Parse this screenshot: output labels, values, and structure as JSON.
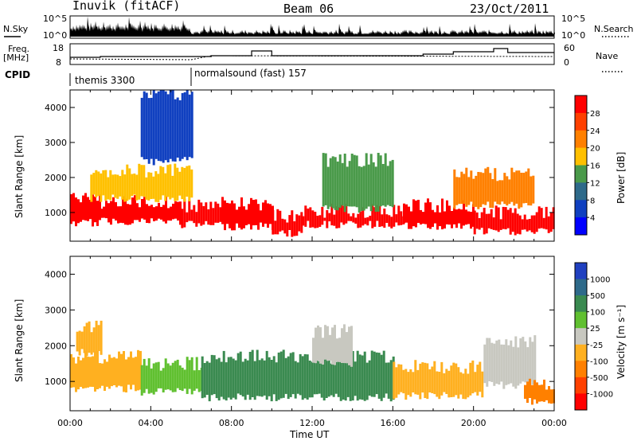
{
  "header": {
    "radar": "Inuvik (fitACF)",
    "beam": "Beam 06",
    "date": "23/Oct/2011"
  },
  "sky_panel": {
    "left_label": "N.Sky",
    "right_label": "N.Search",
    "left_ticks": [
      "10^5",
      "10^0"
    ],
    "right_ticks": [
      "10^5",
      "10^0"
    ]
  },
  "freq_panel": {
    "left_label_1": "Freq.",
    "left_label_2": "[MHz]",
    "left_ticks": [
      "18",
      "8"
    ],
    "right_label": "Nave",
    "right_ticks": [
      "60",
      "0"
    ]
  },
  "cpid": {
    "label": "CPID",
    "modes": [
      "themis 3300",
      "normalsound (fast) 157"
    ]
  },
  "range_panels": {
    "ylabel": "Slant Range [km]",
    "yticks": [
      "4000",
      "3000",
      "2000",
      "1000"
    ]
  },
  "time_axis": {
    "ticks": [
      "00:00",
      "04:00",
      "08:00",
      "12:00",
      "16:00",
      "20:00",
      "00:00"
    ],
    "label": "Time UT"
  },
  "power_colorbar": {
    "label": "Power [dB]",
    "ticks": [
      "28",
      "24",
      "20",
      "16",
      "12",
      "8",
      "4"
    ],
    "colors": [
      "#ff0000",
      "#ff4000",
      "#ff8000",
      "#ffc000",
      "#4a9a4a",
      "#2e6a8a",
      "#1040c0",
      "#0000ff"
    ]
  },
  "velocity_colorbar": {
    "label": "Velocity [m s⁻¹]",
    "ticks": [
      "1000",
      "500",
      "100",
      "25",
      "-25",
      "-100",
      "-500",
      "-1000"
    ],
    "colors": [
      "#2040c0",
      "#2e6a8a",
      "#3a8a50",
      "#60c030",
      "#c8c8c0",
      "#ffb020",
      "#ff8000",
      "#ff4000",
      "#ff0000"
    ]
  },
  "chart_data": {
    "type": "heatmap",
    "xlabel": "Time UT",
    "ylabel": "Slant Range [km]",
    "xlim": [
      0,
      24
    ],
    "ylim": [
      180,
      4500
    ],
    "power_bands": [
      {
        "t": [
          0.0,
          1.5
        ],
        "r": [
          700,
          1400
        ],
        "level": 28
      },
      {
        "t": [
          1.5,
          5.5
        ],
        "r": [
          750,
          1300
        ],
        "level": 28
      },
      {
        "t": [
          5.5,
          7.5
        ],
        "r": [
          650,
          1200
        ],
        "level": 28
      },
      {
        "t": [
          7.5,
          10.0
        ],
        "r": [
          600,
          1250
        ],
        "level": 28
      },
      {
        "t": [
          10.0,
          11.5
        ],
        "r": [
          400,
          900
        ],
        "level": 28
      },
      {
        "t": [
          11.5,
          16.5
        ],
        "r": [
          650,
          1050
        ],
        "level": 28
      },
      {
        "t": [
          16.5,
          20.0
        ],
        "r": [
          600,
          1200
        ],
        "level": 28
      },
      {
        "t": [
          20.0,
          24.0
        ],
        "r": [
          450,
          1000
        ],
        "level": 28
      },
      {
        "t": [
          1.0,
          6.0
        ],
        "r": [
          1400,
          2200
        ],
        "level": 16
      },
      {
        "t": [
          12.5,
          16.0
        ],
        "r": [
          1100,
          2500
        ],
        "level": 12
      },
      {
        "t": [
          19.0,
          23.0
        ],
        "r": [
          1200,
          2100
        ],
        "level": 20
      },
      {
        "t": [
          3.5,
          6.0
        ],
        "r": [
          2500,
          4400
        ],
        "level": 4
      }
    ],
    "velocity_bands": [
      {
        "t": [
          0.0,
          3.5
        ],
        "r": [
          800,
          1700
        ],
        "level": -100
      },
      {
        "t": [
          3.5,
          6.5
        ],
        "r": [
          700,
          1500
        ],
        "level": 25
      },
      {
        "t": [
          6.5,
          16.0
        ],
        "r": [
          550,
          1700
        ],
        "level": 100
      },
      {
        "t": [
          16.0,
          20.5
        ],
        "r": [
          600,
          1400
        ],
        "level": -100
      },
      {
        "t": [
          20.5,
          23.0
        ],
        "r": [
          900,
          2100
        ],
        "level": -25
      },
      {
        "t": [
          22.5,
          24.0
        ],
        "r": [
          450,
          900
        ],
        "level": -500
      },
      {
        "t": [
          0.3,
          1.5
        ],
        "r": [
          1800,
          2500
        ],
        "level": -100
      },
      {
        "t": [
          12.0,
          14.0
        ],
        "r": [
          1500,
          2400
        ],
        "level": -25
      }
    ]
  }
}
